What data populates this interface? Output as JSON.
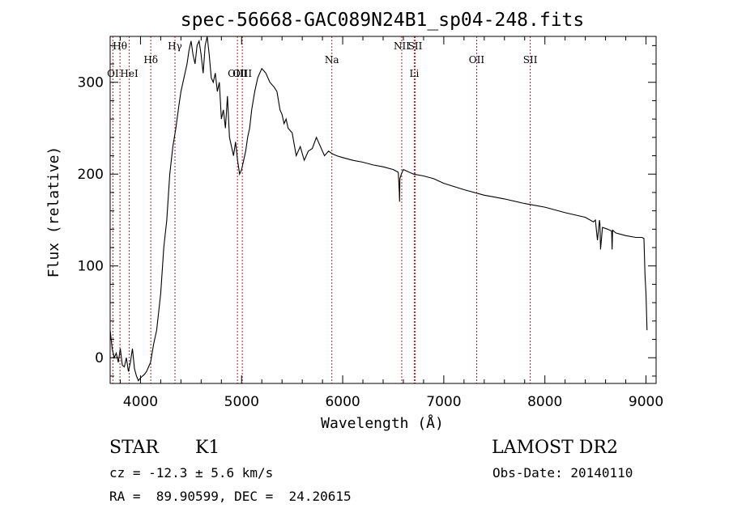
{
  "chart_data": {
    "type": "line",
    "title": "spec-56668-GAC089N24B1_sp04-248.fits",
    "xlabel": "Wavelength (Å)",
    "ylabel": "Flux (relative)",
    "xlim": [
      3700,
      9100
    ],
    "ylim": [
      -28,
      350
    ],
    "xticks": [
      4000,
      5000,
      6000,
      7000,
      8000,
      9000
    ],
    "yticks": [
      0,
      100,
      200,
      300
    ],
    "grid": false,
    "line_color": "#000000",
    "marker_color": "#b22222",
    "series": [
      {
        "x": [
          3700,
          3720,
          3740,
          3760,
          3780,
          3800,
          3820,
          3840,
          3860,
          3880,
          3900,
          3920,
          3940,
          3960,
          3980,
          4000,
          4020,
          4040,
          4060,
          4080,
          4100,
          4130,
          4160,
          4200,
          4230,
          4260,
          4290,
          4320,
          4350,
          4380,
          4400,
          4420,
          4440,
          4460,
          4480,
          4500,
          4520,
          4540,
          4560,
          4580,
          4600,
          4620,
          4640,
          4660,
          4680,
          4700,
          4720,
          4740,
          4760,
          4780,
          4800,
          4820,
          4840,
          4860,
          4880,
          4900,
          4920,
          4940,
          4960,
          4980,
          5000,
          5020,
          5040,
          5060,
          5080,
          5100,
          5130,
          5160,
          5200,
          5240,
          5280,
          5320,
          5350,
          5380,
          5400,
          5420,
          5440,
          5460,
          5500,
          5540,
          5580,
          5620,
          5660,
          5700,
          5740,
          5780,
          5820,
          5860,
          5900,
          5940,
          6000,
          6100,
          6200,
          6300,
          6400,
          6500,
          6550,
          6560,
          6563,
          6566,
          6580,
          6600,
          6700,
          6800,
          6900,
          7000,
          7200,
          7400,
          7500,
          7600,
          7800,
          8000,
          8200,
          8400,
          8480,
          8500,
          8510,
          8520,
          8540,
          8545,
          8550,
          8570,
          8620,
          8660,
          8665,
          8670,
          8700,
          8800,
          8900,
          8960,
          8980,
          8990,
          9000,
          9010
        ],
        "y": [
          30,
          10,
          0,
          5,
          -5,
          10,
          -8,
          -10,
          0,
          -15,
          -5,
          10,
          -12,
          -20,
          -25,
          -22,
          -20,
          -18,
          -15,
          -10,
          -5,
          15,
          30,
          70,
          120,
          150,
          200,
          230,
          250,
          275,
          290,
          300,
          310,
          320,
          335,
          345,
          330,
          320,
          340,
          345,
          330,
          310,
          340,
          350,
          330,
          305,
          300,
          310,
          290,
          300,
          260,
          270,
          250,
          285,
          240,
          230,
          220,
          235,
          215,
          200,
          205,
          215,
          225,
          240,
          250,
          270,
          290,
          305,
          315,
          310,
          300,
          295,
          290,
          270,
          265,
          255,
          260,
          250,
          245,
          220,
          230,
          215,
          225,
          228,
          240,
          230,
          220,
          225,
          222,
          220,
          218,
          215,
          213,
          210,
          208,
          205,
          202,
          180,
          170,
          195,
          200,
          205,
          200,
          198,
          195,
          190,
          183,
          177,
          175,
          173,
          168,
          164,
          158,
          153,
          148,
          150,
          138,
          128,
          150,
          145,
          118,
          142,
          140,
          138,
          118,
          139,
          136,
          133,
          131,
          131,
          130,
          90,
          70,
          30
        ]
      }
    ],
    "line_markers": [
      {
        "label": "Hθ",
        "wavelength": 3797,
        "row": 0
      },
      {
        "label": "OI",
        "wavelength": 3727,
        "row": 2
      },
      {
        "label": "HeI",
        "wavelength": 3889,
        "row": 2
      },
      {
        "label": "Hδ",
        "wavelength": 4102,
        "row": 1
      },
      {
        "label": "Hγ",
        "wavelength": 4341,
        "row": 0
      },
      {
        "label": "OIII",
        "wavelength": 4959,
        "row": 2
      },
      {
        "label": "OIII",
        "wavelength": 5007,
        "row": 2
      },
      {
        "label": "Na",
        "wavelength": 5893,
        "row": 1
      },
      {
        "label": "NII",
        "wavelength": 6584,
        "row": 0
      },
      {
        "label": "SII",
        "wavelength": 6717,
        "row": 0
      },
      {
        "label": "Li",
        "wavelength": 6708,
        "row": 2
      },
      {
        "label": "OII",
        "wavelength": 7325,
        "row": 1
      },
      {
        "label": "SII",
        "wavelength": 7855,
        "row": 1
      }
    ]
  },
  "info": {
    "object_class": "STAR",
    "subclass": "K1",
    "survey": "LAMOST DR2",
    "redshift_text": "cz = -12.3 ± 5.6 km/s",
    "obs_date": "Obs-Date: 20140110",
    "coords": "RA =  89.90599, DEC =  24.20615"
  }
}
